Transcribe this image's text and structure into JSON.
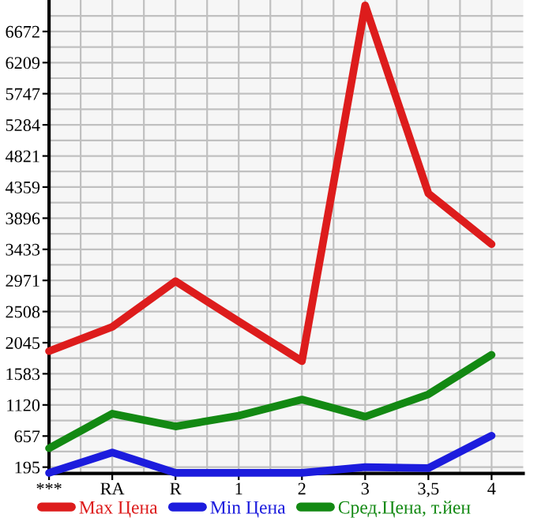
{
  "chart_data": {
    "type": "line",
    "categories": [
      "***",
      "RA",
      "R",
      "1",
      "2",
      "3",
      "3,5",
      "4"
    ],
    "series": [
      {
        "name": "Max Цена",
        "color": "#dd1c1c",
        "values": [
          1920,
          2280,
          2960,
          2360,
          1770,
          7060,
          4265,
          3510
        ]
      },
      {
        "name": "Min Цена",
        "color": "#1c1cdd",
        "values": [
          110,
          413,
          110,
          110,
          110,
          195,
          180,
          663
        ]
      },
      {
        "name": "Сред.Цена, т.йен",
        "color": "#138913",
        "values": [
          476,
          990,
          800,
          960,
          1200,
          945,
          1277,
          1864
        ]
      }
    ],
    "ylim": [
      101,
      7140
    ],
    "yticks": [
      195,
      657,
      1120,
      1583,
      2045,
      2508,
      2971,
      3433,
      3896,
      4359,
      4821,
      5284,
      5747,
      6209,
      6672
    ],
    "grid": true,
    "legend": "bottom",
    "marker": "none",
    "line_style": "solid"
  }
}
